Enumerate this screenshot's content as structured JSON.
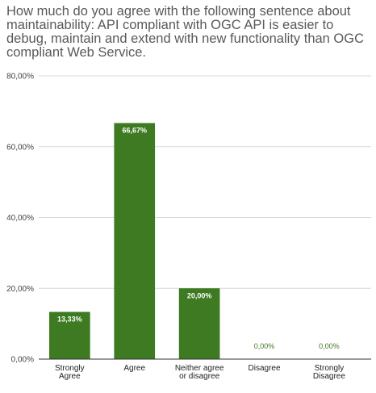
{
  "chart_data": {
    "type": "bar",
    "title": "How much do you agree with the following sentence about maintainability: API compliant with OGC API is easier to debug, maintain and extend with new functionality than OGC compliant Web Service.",
    "categories": [
      [
        "Strongly",
        "Agree"
      ],
      [
        "Agree"
      ],
      [
        "Neither agree",
        "or disagree"
      ],
      [
        "Disagree"
      ],
      [
        "Strongly",
        "Disagree"
      ]
    ],
    "values": [
      13.33,
      66.67,
      20.0,
      0.0,
      0.0
    ],
    "value_labels": [
      "13,33%",
      "66,67%",
      "20,00%",
      "0,00%",
      "0,00%"
    ],
    "ylim": [
      0,
      80
    ],
    "yticks": [
      0,
      20,
      40,
      60,
      80
    ],
    "ytick_labels": [
      "0,00%",
      "20,00%",
      "40,00%",
      "60,00%",
      "80,00%"
    ],
    "grid": true,
    "bar_color": "#3d7a22",
    "xlabel": "",
    "ylabel": ""
  }
}
